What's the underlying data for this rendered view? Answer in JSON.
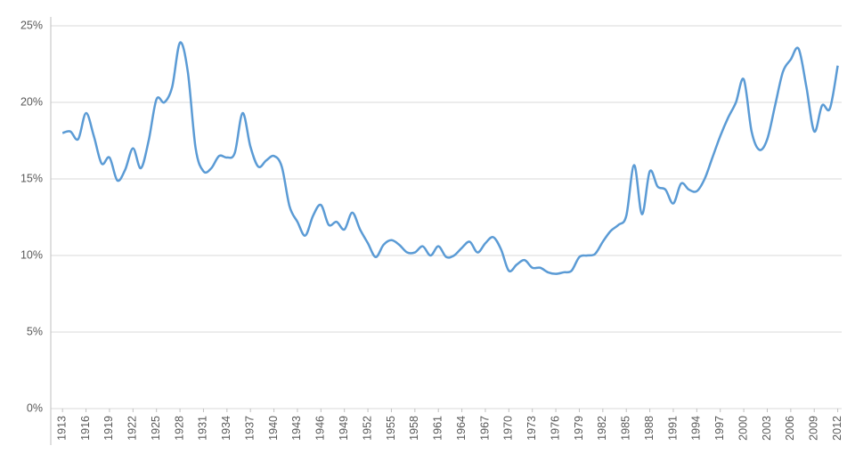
{
  "chart_data": {
    "type": "line",
    "x": [
      1913,
      1914,
      1915,
      1916,
      1917,
      1918,
      1919,
      1920,
      1921,
      1922,
      1923,
      1924,
      1925,
      1926,
      1927,
      1928,
      1929,
      1930,
      1931,
      1932,
      1933,
      1934,
      1935,
      1936,
      1937,
      1938,
      1939,
      1940,
      1941,
      1942,
      1943,
      1944,
      1945,
      1946,
      1947,
      1948,
      1949,
      1950,
      1951,
      1952,
      1953,
      1954,
      1955,
      1956,
      1957,
      1958,
      1959,
      1960,
      1961,
      1962,
      1963,
      1964,
      1965,
      1966,
      1967,
      1968,
      1969,
      1970,
      1971,
      1972,
      1973,
      1974,
      1975,
      1976,
      1977,
      1978,
      1979,
      1980,
      1981,
      1982,
      1983,
      1984,
      1985,
      1986,
      1987,
      1988,
      1989,
      1990,
      1991,
      1992,
      1993,
      1994,
      1995,
      1996,
      1997,
      1998,
      1999,
      2000,
      2001,
      2002,
      2003,
      2004,
      2005,
      2006,
      2007,
      2008,
      2009,
      2010,
      2011,
      2012
    ],
    "values": [
      18.0,
      18.1,
      17.6,
      19.3,
      17.8,
      16.0,
      16.4,
      14.9,
      15.6,
      17.0,
      15.7,
      17.5,
      20.2,
      20.0,
      21.0,
      23.9,
      22.0,
      17.0,
      15.5,
      15.7,
      16.5,
      16.4,
      16.7,
      19.3,
      17.1,
      15.8,
      16.2,
      16.5,
      15.8,
      13.2,
      12.2,
      11.3,
      12.6,
      13.3,
      12.0,
      12.2,
      11.7,
      12.8,
      11.7,
      10.8,
      9.9,
      10.7,
      11.0,
      10.7,
      10.2,
      10.2,
      10.6,
      10.0,
      10.6,
      9.9,
      10.0,
      10.5,
      10.9,
      10.2,
      10.8,
      11.2,
      10.4,
      9.0,
      9.4,
      9.7,
      9.2,
      9.2,
      8.9,
      8.8,
      8.9,
      9.0,
      9.9,
      10.0,
      10.1,
      10.9,
      11.6,
      12.0,
      12.6,
      15.9,
      12.7,
      15.5,
      14.5,
      14.3,
      13.4,
      14.7,
      14.3,
      14.2,
      15.0,
      16.4,
      17.8,
      19.0,
      20.0,
      21.5,
      18.1,
      16.9,
      17.6,
      19.8,
      22.0,
      22.8,
      23.5,
      21.0,
      18.1,
      19.8,
      19.6,
      22.4
    ],
    "color": "#5b9bd5",
    "xlim": [
      1911.5,
      2012.5
    ],
    "xticks": [
      1913,
      1916,
      1919,
      1922,
      1925,
      1928,
      1931,
      1934,
      1937,
      1940,
      1943,
      1946,
      1949,
      1952,
      1955,
      1958,
      1961,
      1964,
      1967,
      1970,
      1973,
      1976,
      1979,
      1982,
      1985,
      1988,
      1991,
      1994,
      1997,
      2000,
      2003,
      2006,
      2009,
      2012
    ],
    "ylim": [
      0,
      25
    ],
    "yticks": [
      {
        "value": 0,
        "label": "0%"
      },
      {
        "value": 5,
        "label": "5%"
      },
      {
        "value": 10,
        "label": "10%"
      },
      {
        "value": 15,
        "label": "15%"
      },
      {
        "value": 20,
        "label": "20%"
      },
      {
        "value": 25,
        "label": "25%"
      }
    ],
    "grid": true
  }
}
